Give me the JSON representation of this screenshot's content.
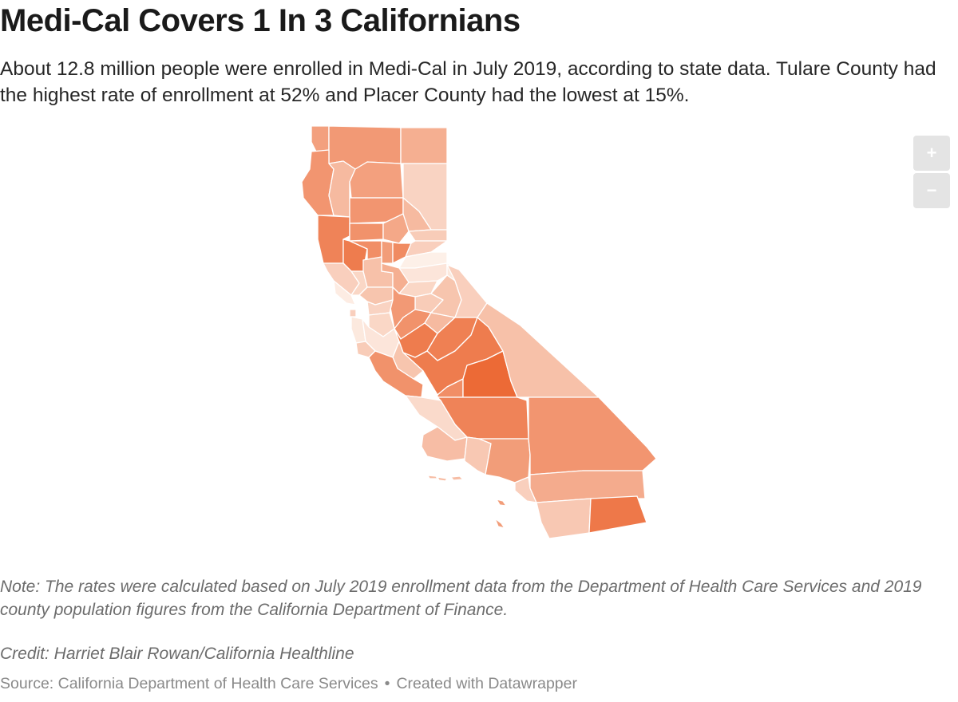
{
  "header": {
    "title": "Medi-Cal Covers 1 In 3 Californians",
    "description": "About 12.8 million people were enrolled in Medi-Cal in July 2019, according to state data. Tulare County had the highest rate of enrollment at 52% and Placer County had the lowest at 15%."
  },
  "map": {
    "color_scale": {
      "low_rate": 15,
      "high_rate": 52,
      "low_color": "#fdf0e8",
      "high_color": "#ec6a36"
    },
    "regions": [
      {
        "id": "del-norte",
        "rate": 37
      },
      {
        "id": "siskiyou",
        "rate": 39
      },
      {
        "id": "modoc",
        "rate": 33
      },
      {
        "id": "humboldt",
        "rate": 40
      },
      {
        "id": "trinity",
        "rate": 30
      },
      {
        "id": "shasta",
        "rate": 37
      },
      {
        "id": "lassen",
        "rate": 23
      },
      {
        "id": "tehama",
        "rate": 40
      },
      {
        "id": "plumas",
        "rate": 30
      },
      {
        "id": "mendocino",
        "rate": 45
      },
      {
        "id": "glenn",
        "rate": 41
      },
      {
        "id": "butte",
        "rate": 35
      },
      {
        "id": "sierra",
        "rate": 25
      },
      {
        "id": "lake",
        "rate": 47
      },
      {
        "id": "colusa",
        "rate": 42
      },
      {
        "id": "sutter",
        "rate": 38
      },
      {
        "id": "yuba",
        "rate": 43
      },
      {
        "id": "nevada",
        "rate": 24
      },
      {
        "id": "placer",
        "rate": 15
      },
      {
        "id": "el-dorado",
        "rate": 18
      },
      {
        "id": "alpine",
        "rate": 17
      },
      {
        "id": "sonoma",
        "rate": 24
      },
      {
        "id": "napa",
        "rate": 22
      },
      {
        "id": "yolo",
        "rate": 28
      },
      {
        "id": "sacramento",
        "rate": 33
      },
      {
        "id": "amador",
        "rate": 22
      },
      {
        "id": "calaveras",
        "rate": 25
      },
      {
        "id": "tuolumne",
        "rate": 27
      },
      {
        "id": "mono",
        "rate": 24
      },
      {
        "id": "marin",
        "rate": 16
      },
      {
        "id": "solano",
        "rate": 27
      },
      {
        "id": "san-joaquin",
        "rate": 39
      },
      {
        "id": "stanislaus",
        "rate": 41
      },
      {
        "id": "mariposa",
        "rate": 30
      },
      {
        "id": "contra-costa",
        "rate": 23
      },
      {
        "id": "san-francisco",
        "rate": 24
      },
      {
        "id": "alameda",
        "rate": 22
      },
      {
        "id": "san-mateo",
        "rate": 17
      },
      {
        "id": "santa-clara",
        "rate": 18
      },
      {
        "id": "santa-cruz",
        "rate": 25
      },
      {
        "id": "merced",
        "rate": 47
      },
      {
        "id": "madera",
        "rate": 46
      },
      {
        "id": "fresno",
        "rate": 47
      },
      {
        "id": "san-benito",
        "rate": 27
      },
      {
        "id": "monterey",
        "rate": 41
      },
      {
        "id": "kings",
        "rate": 42
      },
      {
        "id": "tulare",
        "rate": 52
      },
      {
        "id": "inyo",
        "rate": 28
      },
      {
        "id": "san-luis-obispo",
        "rate": 21
      },
      {
        "id": "kern",
        "rate": 45
      },
      {
        "id": "santa-barbara",
        "rate": 29
      },
      {
        "id": "ventura",
        "rate": 26
      },
      {
        "id": "los-angeles",
        "rate": 38
      },
      {
        "id": "san-bernardino",
        "rate": 40
      },
      {
        "id": "orange",
        "rate": 24
      },
      {
        "id": "riverside",
        "rate": 34
      },
      {
        "id": "san-diego",
        "rate": 26
      },
      {
        "id": "imperial",
        "rate": 48
      }
    ]
  },
  "controls": {
    "zoom_in": "+",
    "zoom_out": "−"
  },
  "notes": {
    "note": "Note: The rates were calculated based on July 2019 enrollment data from the Department of Health Care Services and 2019 county population figures from the California Department of Finance.",
    "credit": "Credit: Harriet Blair Rowan/California Healthline",
    "source": "Source: California Department of Health Care Services",
    "created_with": "Created with Datawrapper",
    "separator": "•"
  }
}
